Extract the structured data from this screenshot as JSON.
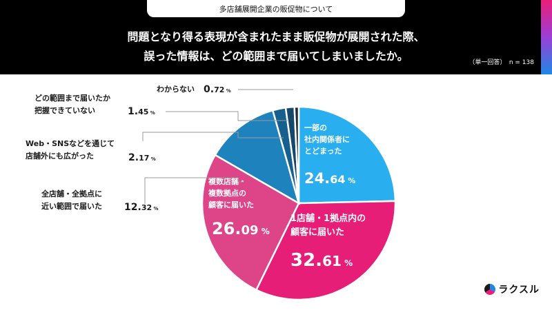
{
  "header": {
    "topic": "多店舗展開企業の販促物について",
    "question_line1": "問題となり得る表現が含まれたまま販促物が展開された際、",
    "question_line2": "誤った情報は、どの範囲まで届いてしまいましたか。",
    "meta": "（単一回答）　n = 138"
  },
  "chart_data": {
    "type": "pie",
    "start": "12 o'clock",
    "direction": "clockwise",
    "unit": "%",
    "slices": [
      {
        "label": "一部の社内関係者にとどまった",
        "value": 24.64,
        "color": "#29aef0"
      },
      {
        "label": "1店舗・1拠点内の顧客に届いた",
        "value": 32.61,
        "color": "#e61e78"
      },
      {
        "label": "複数店舗・複数拠点の顧客に届いた",
        "value": 26.09,
        "color": "#de4488"
      },
      {
        "label": "全店舗・全拠点に近い範囲で届いた",
        "value": 12.32,
        "color": "#1e82bc"
      },
      {
        "label": "Web・SNSなどを通じて店舗外にも広がった",
        "value": 2.17,
        "color": "#16608e"
      },
      {
        "label": "どの範囲まで届いたか把握できていない",
        "value": 1.45,
        "color": "#14496b"
      },
      {
        "label": "わからない",
        "value": 0.72,
        "color": "#232a33"
      }
    ]
  },
  "inside_labels": [
    {
      "lines": [
        "一部の",
        "社内関係者に",
        "とどまった"
      ],
      "int": "24.",
      "dec": "64",
      "pct": "%"
    },
    {
      "lines": [
        "1店舗・1拠点内の",
        "顧客に届いた"
      ],
      "int": "32.",
      "dec": "61",
      "pct": "%"
    },
    {
      "lines": [
        "複数店舗・",
        "複数拠点の",
        "顧客に届いた"
      ],
      "int": "26.",
      "dec": "09",
      "pct": "%"
    }
  ],
  "outside_labels": [
    {
      "lines": [
        "わからない"
      ],
      "int": "0.",
      "dec": "72",
      "pct": "%"
    },
    {
      "lines": [
        "どの範囲まで届いたか",
        "把握できていない"
      ],
      "int": "1.",
      "dec": "45",
      "pct": "%"
    },
    {
      "lines": [
        "Web・SNSなどを通じて",
        "店舗外にも広がった"
      ],
      "int": "2.",
      "dec": "17",
      "pct": "%"
    },
    {
      "lines": [
        "全店舗・全拠点に",
        "近い範囲で届いた"
      ],
      "int": "12.",
      "dec": "32",
      "pct": "%"
    }
  ],
  "logo": {
    "text": "ラクスル"
  }
}
